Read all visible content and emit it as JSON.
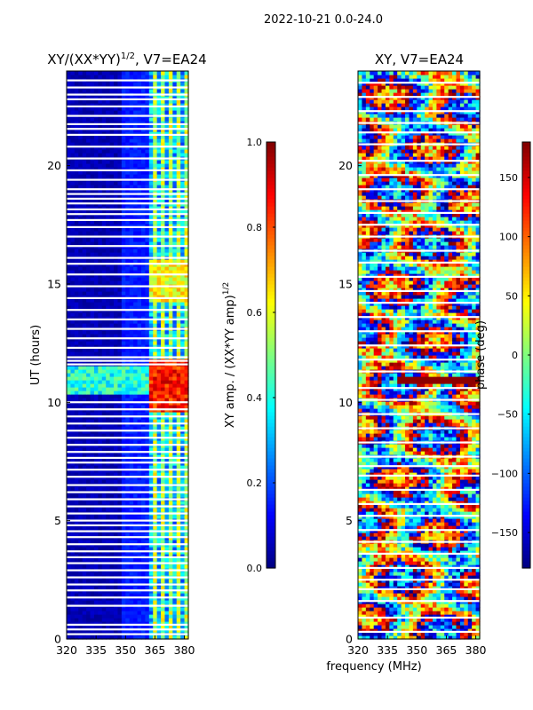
{
  "suptitle": "2022-10-21 0.0-24.0",
  "shared_xlabel": "frequency (MHz)",
  "colors": {
    "jet_stops": [
      "#00007f",
      "#0000ff",
      "#007fff",
      "#00ffff",
      "#7fff7f",
      "#ffff00",
      "#ff7f00",
      "#ff0000",
      "#7f0000"
    ],
    "background": "#ffffff",
    "flag_color": "#ffffff"
  },
  "chart_data": [
    {
      "type": "heatmap",
      "title_main": "XY/(XX*YY)",
      "title_sup": "1/2",
      "title_tail": ", V7=EA24",
      "xlabel": "",
      "ylabel": "UT (hours)",
      "xlim": [
        320,
        382
      ],
      "ylim": [
        0,
        24
      ],
      "xticks": [
        320,
        335,
        350,
        365,
        380
      ],
      "yticks": [
        0,
        5,
        10,
        15,
        20
      ],
      "colorbar": {
        "label": "XY amp. / (XX*YY amp)",
        "label_sup": "1/2",
        "range": [
          0.0,
          1.0
        ],
        "ticks": [
          "0.0",
          "0.2",
          "0.4",
          "0.6",
          "0.8",
          "1.0"
        ],
        "tick_values": [
          0.0,
          0.2,
          0.4,
          0.6,
          0.8,
          1.0
        ]
      },
      "regions": [
        {
          "freq_range": [
            320,
            347
          ],
          "typical_value": 0.05
        },
        {
          "freq_range": [
            347,
            362
          ],
          "typical_value": 0.15
        },
        {
          "freq_range": [
            362,
            382
          ],
          "typical_value": 0.45,
          "periodic_bands": true
        }
      ],
      "features": [
        {
          "time_range": [
            10.3,
            11.5
          ],
          "freq_range": [
            320,
            362
          ],
          "value": 0.4
        },
        {
          "time_range": [
            9.6,
            11.8
          ],
          "freq_range": [
            362,
            382
          ],
          "value": 0.85
        },
        {
          "time_range": [
            14.3,
            16.0
          ],
          "freq_range": [
            362,
            382
          ],
          "value": 0.62
        }
      ],
      "flagged_times": [
        0.2,
        0.4,
        0.6,
        1.4,
        1.75,
        2.05,
        2.3,
        2.6,
        2.9,
        3.2,
        3.45,
        3.7,
        4.0,
        4.3,
        4.55,
        4.8,
        5.0,
        5.3,
        5.6,
        5.9,
        6.2,
        6.5,
        6.85,
        7.15,
        7.45,
        7.65,
        7.9,
        8.2,
        8.5,
        8.8,
        9.1,
        9.4,
        9.7,
        10.0,
        11.6,
        11.75,
        11.9,
        12.3,
        12.7,
        13.1,
        13.5,
        13.9,
        14.4,
        14.9,
        15.4,
        15.85,
        16.1,
        16.6,
        17.0,
        17.4,
        17.7,
        17.95,
        18.15,
        18.4,
        18.6,
        18.8,
        19.0,
        19.4,
        19.8,
        20.3,
        20.8,
        21.3,
        21.55,
        21.75,
        22.1,
        22.5,
        22.8,
        23.0,
        23.3,
        23.6
      ]
    },
    {
      "type": "heatmap",
      "title_main": "XY, V7=EA24",
      "xlabel": "frequency (MHz)",
      "ylabel": "",
      "xlim": [
        320,
        382
      ],
      "ylim": [
        0,
        24
      ],
      "xticks": [
        320,
        335,
        350,
        365,
        380
      ],
      "yticks": [
        0,
        5,
        10,
        15,
        20
      ],
      "colorbar": {
        "label": "phase (deg)",
        "range": [
          -180,
          180
        ],
        "ticks": [
          "−150",
          "−100",
          "−50",
          "0",
          "50",
          "100",
          "150"
        ],
        "tick_values": [
          -150,
          -100,
          -50,
          0,
          50,
          100,
          150
        ]
      },
      "regions": [
        {
          "freq_range": [
            320,
            382
          ],
          "description": "wrapped phase, full range"
        }
      ],
      "features": [
        {
          "time_range": [
            10.8,
            11.1
          ],
          "freq_range": [
            340,
            382
          ],
          "value": 175
        }
      ],
      "flagged_times": [
        0.3,
        0.9,
        1.6,
        2.1,
        2.5,
        3.0,
        3.6,
        4.1,
        4.6,
        5.2,
        5.7,
        6.3,
        6.9,
        7.3,
        7.7,
        8.3,
        8.9,
        9.5,
        10.1,
        10.6,
        11.3,
        11.8,
        12.4,
        13.0,
        13.6,
        14.2,
        14.7,
        15.3,
        15.9,
        16.4,
        17.0,
        17.5,
        18.0,
        18.5,
        19.0,
        19.6,
        20.2,
        20.9,
        21.4,
        21.8,
        22.3,
        22.9,
        23.5
      ]
    }
  ]
}
